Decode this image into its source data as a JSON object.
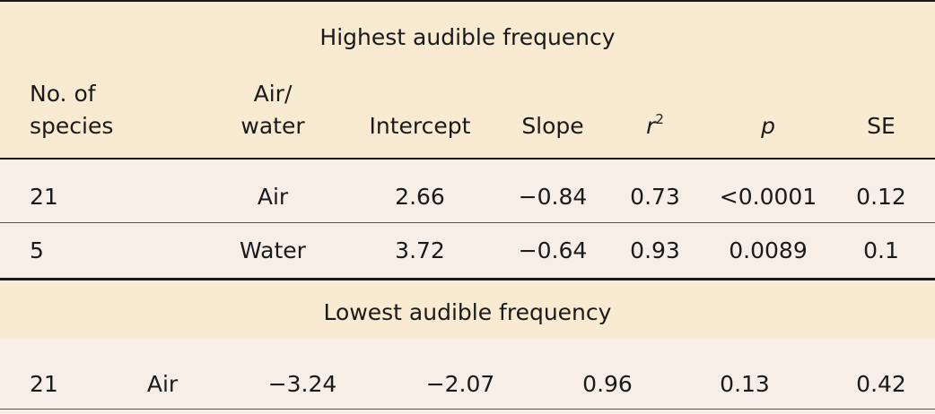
{
  "table": {
    "section1": {
      "title": "Highest audible frequency",
      "headers": {
        "no_species_line1": "No. of",
        "no_species_line2": "species",
        "medium_line1": "Air/",
        "medium_line2": "water",
        "intercept": "Intercept",
        "slope": "Slope",
        "r2_base": "r",
        "r2_sup": "2",
        "p": "p",
        "se": "SE"
      },
      "rows": [
        {
          "n": "21",
          "medium": "Air",
          "intercept": "2.66",
          "slope": "−0.84",
          "r2": "0.73",
          "p": "<0.0001",
          "se": "0.12"
        },
        {
          "n": "5",
          "medium": "Water",
          "intercept": "3.72",
          "slope": "−0.64",
          "r2": "0.93",
          "p": "0.0089",
          "se": "0.1"
        }
      ]
    },
    "section2": {
      "title": "Lowest audible frequency",
      "rows": [
        {
          "n": "21",
          "medium": "Air",
          "intercept": "−3.24",
          "slope": "−2.07",
          "r2": "0.96",
          "p": "0.13",
          "se": "0.42"
        }
      ]
    }
  }
}
